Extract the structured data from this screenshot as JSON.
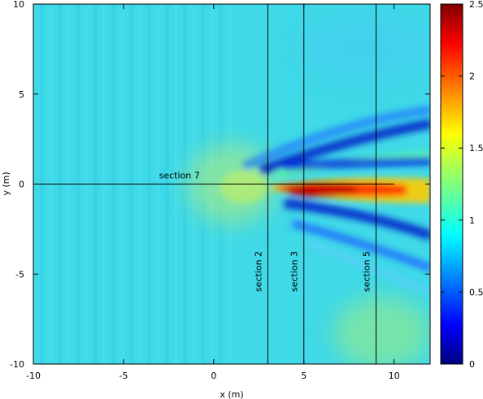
{
  "chart_data": {
    "type": "heatmap",
    "xlabel": "x (m)",
    "ylabel": "y (m)",
    "xlim": [
      -10,
      12
    ],
    "ylim": [
      -10,
      10
    ],
    "x_ticks": [
      "-10",
      "-5",
      "0",
      "5",
      "10"
    ],
    "y_ticks": [
      "10",
      "5",
      "0",
      "-5",
      "-10"
    ],
    "colorbar": {
      "range": [
        0,
        2.5
      ],
      "ticks": [
        "2.5",
        "2",
        "1.5",
        "1",
        "0.5",
        "0"
      ],
      "colormap": "jet"
    },
    "sections": [
      {
        "name": "section 2",
        "orientation": "vertical",
        "x": 3
      },
      {
        "name": "section 3",
        "orientation": "vertical",
        "x": 5
      },
      {
        "name": "section 5",
        "orientation": "vertical",
        "x": 9
      },
      {
        "name": "section 7",
        "orientation": "horizontal",
        "y": 0,
        "x_range": [
          -10,
          10
        ]
      }
    ]
  }
}
